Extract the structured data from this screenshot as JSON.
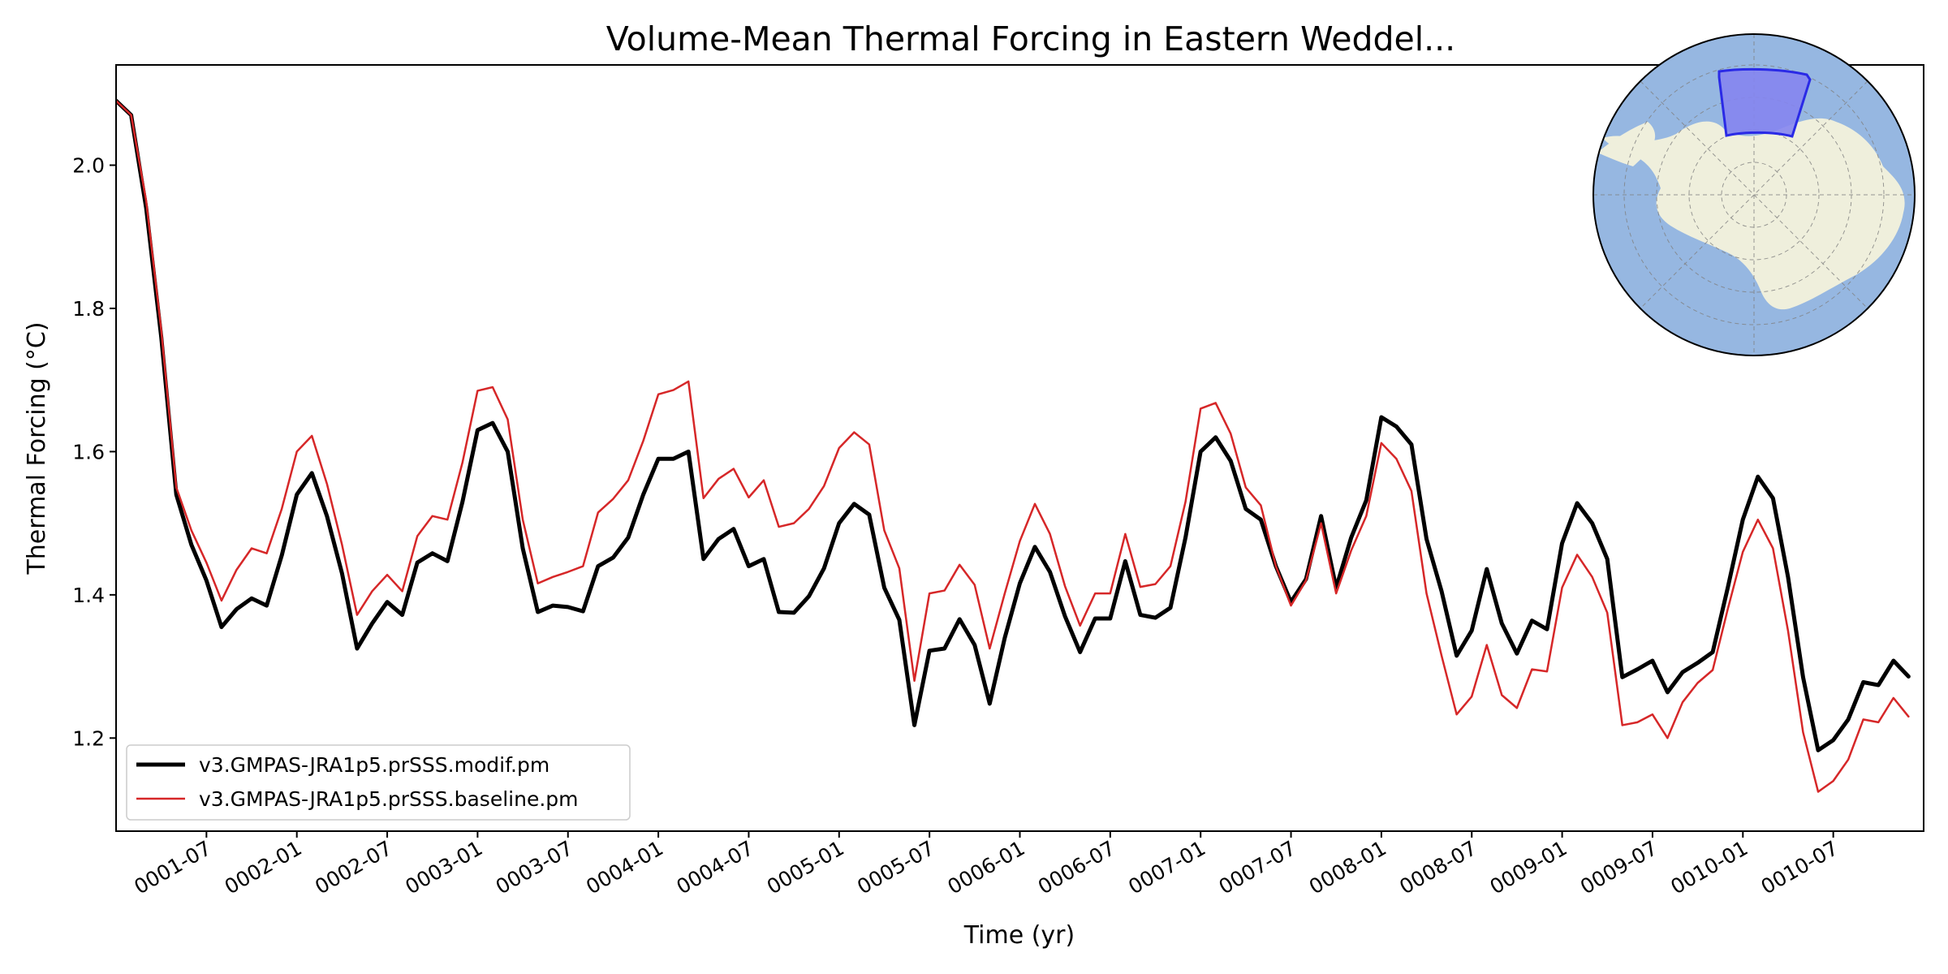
{
  "chart_data": {
    "type": "line",
    "title": "Volume-Mean Thermal Forcing in Eastern Weddel...",
    "xlabel": "Time (yr)",
    "ylabel": "Thermal Forcing (°C)",
    "xlim": [
      1.0,
      11.0
    ],
    "ylim": [
      1.07,
      2.14
    ],
    "yticks": [
      1.2,
      1.4,
      1.6,
      1.8,
      2.0
    ],
    "ytick_labels": [
      "1.2",
      "1.4",
      "1.6",
      "1.8",
      "2.0"
    ],
    "xticks": [
      1.5,
      2.0,
      2.5,
      3.0,
      3.5,
      4.0,
      4.5,
      5.0,
      5.5,
      6.0,
      6.5,
      7.0,
      7.5,
      8.0,
      8.5,
      9.0,
      9.5,
      10.0,
      10.5
    ],
    "xtick_labels": [
      "0001-07",
      "0002-01",
      "0002-07",
      "0003-01",
      "0003-07",
      "0004-01",
      "0004-07",
      "0005-01",
      "0005-07",
      "0006-01",
      "0006-07",
      "0007-01",
      "0007-07",
      "0008-01",
      "0008-07",
      "0009-01",
      "0009-07",
      "0010-01",
      "0010-07"
    ],
    "x_start": 1.0,
    "x_step": 0.08333,
    "legend_location": "lower-left",
    "series": [
      {
        "name": "v3.GMPAS-JRA1p5.prSSS.modif.pm",
        "color": "#000000",
        "linewidth": 5,
        "values": [
          2.09,
          2.07,
          1.94,
          1.76,
          1.54,
          1.47,
          1.42,
          1.355,
          1.38,
          1.395,
          1.385,
          1.455,
          1.54,
          1.57,
          1.51,
          1.43,
          1.325,
          1.36,
          1.39,
          1.372,
          1.445,
          1.458,
          1.447,
          1.53,
          1.63,
          1.64,
          1.6,
          1.465,
          1.376,
          1.385,
          1.383,
          1.377,
          1.44,
          1.452,
          1.48,
          1.54,
          1.59,
          1.59,
          1.6,
          1.45,
          1.478,
          1.492,
          1.44,
          1.45,
          1.376,
          1.375,
          1.398,
          1.437,
          1.5,
          1.527,
          1.512,
          1.41,
          1.365,
          1.218,
          1.322,
          1.325,
          1.366,
          1.33,
          1.248,
          1.34,
          1.416,
          1.467,
          1.432,
          1.37,
          1.32,
          1.367,
          1.367,
          1.447,
          1.372,
          1.368,
          1.382,
          1.48,
          1.6,
          1.62,
          1.587,
          1.52,
          1.505,
          1.44,
          1.39,
          1.422,
          1.51,
          1.41,
          1.48,
          1.532,
          1.648,
          1.635,
          1.61,
          1.478,
          1.405,
          1.315,
          1.35,
          1.436,
          1.36,
          1.318,
          1.364,
          1.352,
          1.472,
          1.528,
          1.5,
          1.45,
          1.285,
          1.296,
          1.308,
          1.264,
          1.292,
          1.305,
          1.32,
          1.41,
          1.505,
          1.565,
          1.535,
          1.425,
          1.285,
          1.183,
          1.197,
          1.226,
          1.278,
          1.274,
          1.308,
          1.286
        ]
      },
      {
        "name": "v3.GMPAS-JRA1p5.prSSS.baseline.pm",
        "color": "#d62728",
        "linewidth": 2.5,
        "values": [
          2.09,
          2.07,
          1.95,
          1.77,
          1.55,
          1.49,
          1.445,
          1.392,
          1.435,
          1.465,
          1.458,
          1.52,
          1.6,
          1.622,
          1.555,
          1.47,
          1.372,
          1.405,
          1.428,
          1.405,
          1.482,
          1.51,
          1.505,
          1.585,
          1.685,
          1.69,
          1.645,
          1.505,
          1.416,
          1.425,
          1.432,
          1.44,
          1.515,
          1.534,
          1.56,
          1.615,
          1.68,
          1.686,
          1.698,
          1.535,
          1.562,
          1.576,
          1.536,
          1.56,
          1.495,
          1.5,
          1.52,
          1.552,
          1.605,
          1.627,
          1.61,
          1.49,
          1.437,
          1.28,
          1.402,
          1.406,
          1.442,
          1.414,
          1.325,
          1.402,
          1.475,
          1.527,
          1.485,
          1.412,
          1.357,
          1.402,
          1.402,
          1.485,
          1.411,
          1.415,
          1.44,
          1.53,
          1.66,
          1.668,
          1.625,
          1.55,
          1.525,
          1.44,
          1.385,
          1.42,
          1.5,
          1.402,
          1.462,
          1.51,
          1.612,
          1.59,
          1.545,
          1.402,
          1.315,
          1.233,
          1.258,
          1.33,
          1.26,
          1.242,
          1.296,
          1.293,
          1.41,
          1.456,
          1.425,
          1.375,
          1.218,
          1.222,
          1.233,
          1.2,
          1.25,
          1.277,
          1.295,
          1.38,
          1.46,
          1.505,
          1.465,
          1.35,
          1.208,
          1.125,
          1.14,
          1.17,
          1.226,
          1.222,
          1.256,
          1.23
        ]
      }
    ],
    "inset_map": {
      "projection": "south-polar-stereographic",
      "ocean_color": "#96b7e1",
      "land_color": "#efefdc",
      "region_fill": "#8585ef",
      "region_edge": "#2a2ae6"
    }
  }
}
